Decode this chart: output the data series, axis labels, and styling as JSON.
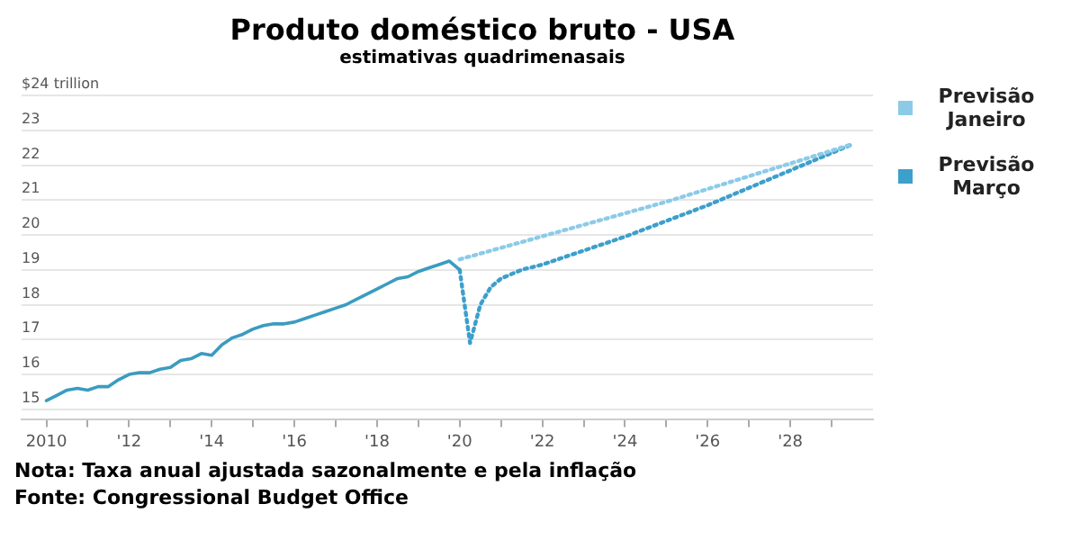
{
  "chart_data": {
    "type": "line",
    "title": "Produto doméstico bruto - USA",
    "subtitle": "estimativas quadrimenasais",
    "annotations": [
      "Nota: Taxa anual ajustada sazonalmente e pela inflação",
      "Fonte: Congressional Budget Office"
    ],
    "xlim": [
      2009.4,
      2030
    ],
    "xticks": [
      {
        "value": 2010,
        "label": "2010"
      },
      {
        "value": 2011,
        "label": null
      },
      {
        "value": 2012,
        "label": "'12"
      },
      {
        "value": 2013,
        "label": null
      },
      {
        "value": 2014,
        "label": "'14"
      },
      {
        "value": 2015,
        "label": null
      },
      {
        "value": 2016,
        "label": "'16"
      },
      {
        "value": 2017,
        "label": null
      },
      {
        "value": 2018,
        "label": "'18"
      },
      {
        "value": 2019,
        "label": null
      },
      {
        "value": 2020,
        "label": "'20"
      },
      {
        "value": 2021,
        "label": null
      },
      {
        "value": 2022,
        "label": "'22"
      },
      {
        "value": 2023,
        "label": null
      },
      {
        "value": 2024,
        "label": "'24"
      },
      {
        "value": 2025,
        "label": null
      },
      {
        "value": 2026,
        "label": "'26"
      },
      {
        "value": 2027,
        "label": null
      },
      {
        "value": 2028,
        "label": "'28"
      },
      {
        "value": 2029,
        "label": null
      }
    ],
    "ylim": [
      14.7,
      24
    ],
    "yticks": [
      15,
      16,
      17,
      18,
      19,
      20,
      21,
      22,
      23,
      {
        "value": 24,
        "label": "$24 trillion"
      }
    ],
    "grid": "y",
    "legend": "right",
    "marker": "none",
    "series": [
      {
        "color": "#3a9cc0",
        "line_style": "solid",
        "x": [
          2010,
          2010.25,
          2010.5,
          2010.75,
          2011,
          2011.25,
          2011.5,
          2011.75,
          2012,
          2012.25,
          2012.5,
          2012.75,
          2013,
          2013.25,
          2013.5,
          2013.75,
          2014,
          2014.25,
          2014.5,
          2014.75,
          2015,
          2015.25,
          2015.5,
          2015.75,
          2016,
          2016.25,
          2016.5,
          2016.75,
          2017,
          2017.25,
          2017.5,
          2017.75,
          2018,
          2018.25,
          2018.5,
          2018.75,
          2019,
          2019.25,
          2019.5,
          2019.75,
          2020
        ],
        "values": [
          15.25,
          15.4,
          15.55,
          15.6,
          15.55,
          15.65,
          15.65,
          15.85,
          16,
          16.05,
          16.05,
          16.15,
          16.2,
          16.4,
          16.45,
          16.6,
          16.55,
          16.85,
          17.05,
          17.15,
          17.3,
          17.4,
          17.45,
          17.45,
          17.5,
          17.6,
          17.7,
          17.8,
          17.9,
          18,
          18.15,
          18.3,
          18.45,
          18.6,
          18.75,
          18.8,
          18.95,
          19.05,
          19.15,
          19.25,
          19
        ]
      },
      {
        "name": "Previsão Janeiro",
        "color": "#8ccbe8",
        "line_style": "dotted",
        "x": [
          2020,
          2025,
          2029.5
        ],
        "values": [
          19.3,
          20.95,
          22.6
        ]
      },
      {
        "name": "Previsão Março",
        "color": "#3c9fcc",
        "line_style": "dotted",
        "x": [
          2020,
          2020.25,
          2020.5,
          2020.75,
          2021,
          2021.5,
          2022,
          2023,
          2024,
          2025,
          2026,
          2027,
          2028,
          2029,
          2029.5
        ],
        "values": [
          19,
          16.9,
          18,
          18.5,
          18.75,
          19,
          19.15,
          19.55,
          19.95,
          20.4,
          20.85,
          21.35,
          21.85,
          22.35,
          22.6
        ]
      }
    ]
  }
}
